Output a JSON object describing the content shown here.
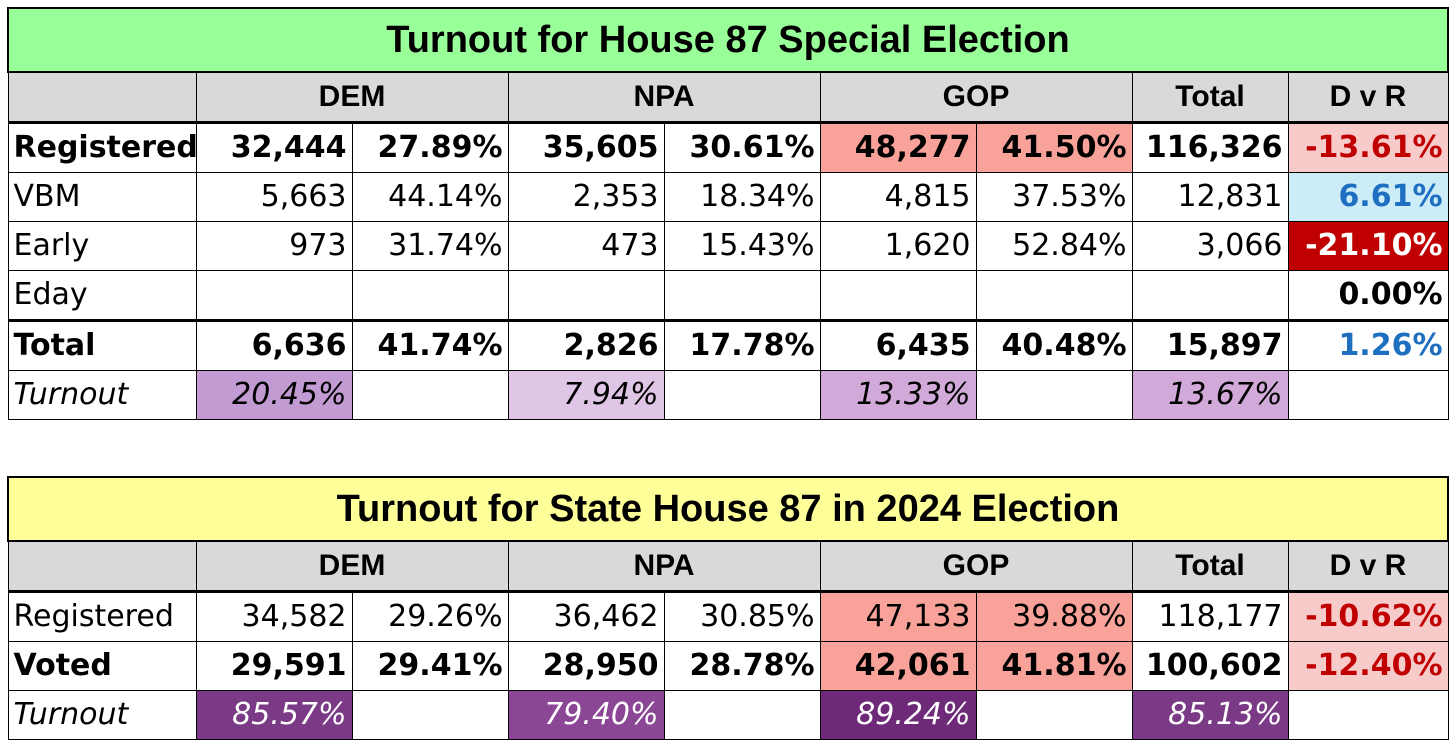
{
  "table1": {
    "title": "Turnout for House 87 Special Election",
    "title_bg": "#99ff99",
    "headers": {
      "dem": "DEM",
      "npa": "NPA",
      "gop": "GOP",
      "total": "Total",
      "dvr": "D v R"
    },
    "rows": [
      {
        "label": "Registered",
        "dem_n": "32,444",
        "dem_p": "27.89%",
        "npa_n": "35,605",
        "npa_p": "30.61%",
        "gop_n": "48,277",
        "gop_p": "41.50%",
        "total": "116,326",
        "dvr": "-13.61%"
      },
      {
        "label": "VBM",
        "dem_n": "5,663",
        "dem_p": "44.14%",
        "npa_n": "2,353",
        "npa_p": "18.34%",
        "gop_n": "4,815",
        "gop_p": "37.53%",
        "total": "12,831",
        "dvr": "6.61%"
      },
      {
        "label": "Early",
        "dem_n": "973",
        "dem_p": "31.74%",
        "npa_n": "473",
        "npa_p": "15.43%",
        "gop_n": "1,620",
        "gop_p": "52.84%",
        "total": "3,066",
        "dvr": "-21.10%"
      },
      {
        "label": "Eday",
        "dem_n": "",
        "dem_p": "",
        "npa_n": "",
        "npa_p": "",
        "gop_n": "",
        "gop_p": "",
        "total": "",
        "dvr": "0.00%"
      },
      {
        "label": "Total",
        "dem_n": "6,636",
        "dem_p": "41.74%",
        "npa_n": "2,826",
        "npa_p": "17.78%",
        "gop_n": "6,435",
        "gop_p": "40.48%",
        "total": "15,897",
        "dvr": "1.26%"
      },
      {
        "label": "Turnout",
        "dem": "20.45%",
        "npa": "7.94%",
        "gop": "13.33%",
        "total": "13.67%"
      }
    ],
    "colors": {
      "gop_registered": "#f8a29a",
      "dvr_registered_bg": "#f8cbcb",
      "dvr_registered_fg": "#c00000",
      "dvr_vbm_bg": "#ccecf8",
      "dvr_vbm_fg": "#1f6fc0",
      "dvr_early_bg": "#c00000",
      "dvr_early_fg": "#ffffff",
      "dvr_total_fg": "#1f6fc0",
      "turnout_dem": "#c39bd3",
      "turnout_npa": "#e0c6e6",
      "turnout_gop": "#d1aad9",
      "turnout_total": "#d1aad9"
    }
  },
  "table2": {
    "title": "Turnout for State House 87 in 2024 Election",
    "title_bg": "#ffff99",
    "headers": {
      "dem": "DEM",
      "npa": "NPA",
      "gop": "GOP",
      "total": "Total",
      "dvr": "D v R"
    },
    "rows": [
      {
        "label": "Registered",
        "dem_n": "34,582",
        "dem_p": "29.26%",
        "npa_n": "36,462",
        "npa_p": "30.85%",
        "gop_n": "47,133",
        "gop_p": "39.88%",
        "total": "118,177",
        "dvr": "-10.62%"
      },
      {
        "label": "Voted",
        "dem_n": "29,591",
        "dem_p": "29.41%",
        "npa_n": "28,950",
        "npa_p": "28.78%",
        "gop_n": "42,061",
        "gop_p": "41.81%",
        "total": "100,602",
        "dvr": "-12.40%"
      },
      {
        "label": "Turnout",
        "dem": "85.57%",
        "npa": "79.40%",
        "gop": "89.24%",
        "total": "85.13%"
      }
    ],
    "colors": {
      "gop_cells": "#f8a29a",
      "dvr_bg": "#f8cbcb",
      "dvr_fg": "#c00000",
      "turnout_dem": "#7b3a85",
      "turnout_npa": "#8c4696",
      "turnout_gop": "#6e2a79",
      "turnout_total": "#7b3a85",
      "turnout_fg": "#ffffff"
    }
  }
}
